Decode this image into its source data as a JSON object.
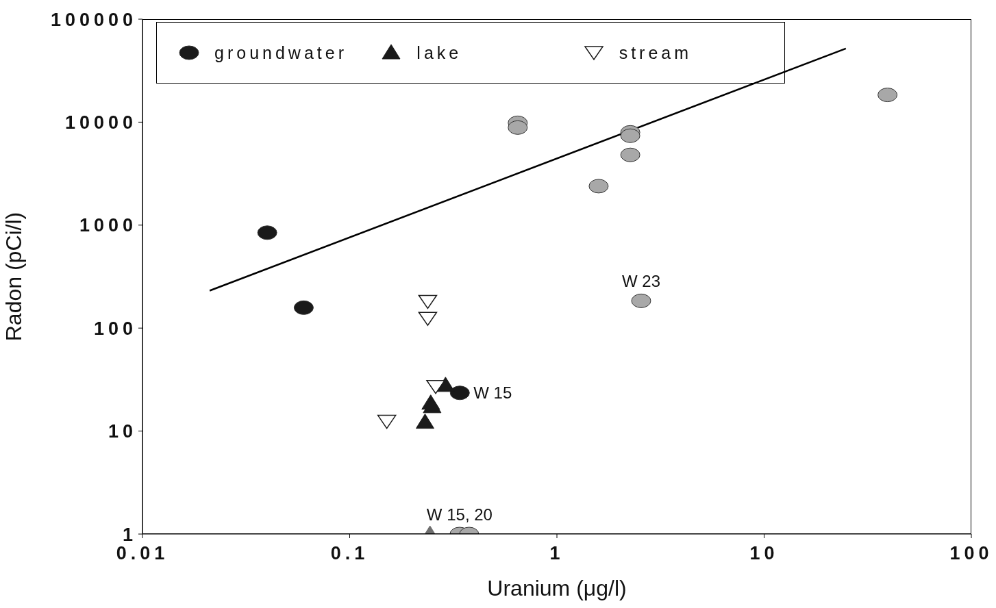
{
  "chart_data": {
    "type": "scatter",
    "xlabel": "Uranium (μg/l)",
    "ylabel": "Radon (pCi/l)",
    "log": "xy",
    "xlim": [
      0.01,
      100
    ],
    "xticks": [
      0.01,
      0.1,
      1,
      10,
      100
    ],
    "ylim": [
      1,
      100000
    ],
    "yticks": [
      1,
      10,
      100,
      1000,
      10000,
      100000
    ],
    "grid": false,
    "legend": "top",
    "series": [
      {
        "name": "groundwater",
        "color": "#1a1a1a",
        "marker": "circle",
        "x": [
          0.04,
          0.06,
          0.34
        ],
        "values": [
          845,
          158,
          23.5
        ]
      },
      {
        "name": "lake",
        "color": "#1a1a1a",
        "marker": "triangle",
        "x": [
          0.29,
          0.246,
          0.25,
          0.231
        ],
        "values": [
          27.8,
          18.7,
          17.3,
          12.2
        ]
      },
      {
        "name": "stream",
        "color": "#1a1a1a",
        "marker": "triangle-down",
        "x": [
          0.238,
          0.238,
          0.26,
          0.151
        ],
        "values": [
          181,
          124,
          27,
          12.4
        ]
      },
      {
        "color": "#a8a8a8",
        "marker": "circle",
        "x": [
          0.647,
          0.647,
          2.26,
          2.26,
          2.26,
          1.59,
          2.55,
          39.4,
          0.339,
          0.377
        ],
        "values": [
          9850,
          8860,
          7960,
          7380,
          4810,
          2390,
          184,
          18400,
          1,
          1
        ]
      },
      {
        "color": "#6e6e6e",
        "marker": "triangle",
        "x": [
          0.244
        ],
        "values": [
          1
        ]
      },
      {
        "type": "line",
        "color": "#000000",
        "marker": "none",
        "x": [
          0.0211,
          24.8
        ],
        "values": [
          231,
          51900
        ]
      }
    ],
    "annotations": [
      {
        "text": "W 23",
        "x": 2.55,
        "y": 184
      },
      {
        "text": "W 15",
        "x": 0.34,
        "y": 23.5
      },
      {
        "text": "W 15, 20",
        "x": 0.339,
        "y": 1
      }
    ]
  }
}
